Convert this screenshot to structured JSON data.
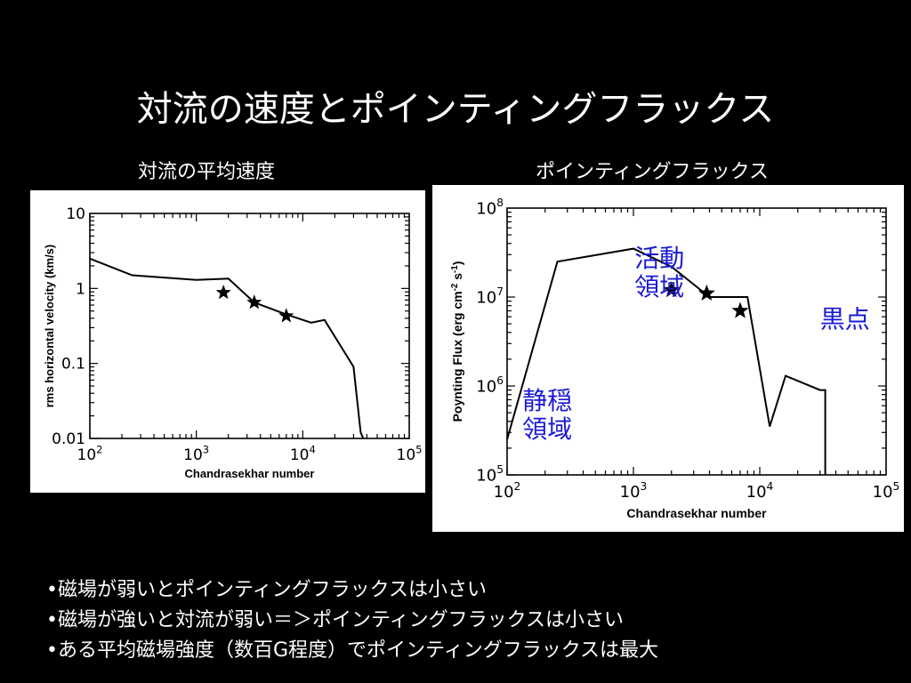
{
  "slide": {
    "title": "対流の速度とポインティングフラックス",
    "left_caption": "対流の平均速度",
    "right_caption": "ポインティングフラックス",
    "bullets": [
      "•磁場が弱いとポインティングフラックスは小さい",
      "•磁場が強いと対流が弱い＝＞ポインティングフラックスは小さい",
      "•ある平均磁場強度（数百G程度）でポインティングフラックスは最大"
    ]
  },
  "chart_data": [
    {
      "type": "line",
      "xlabel": "Chandrasekhar number",
      "ylabel": "rms horizontal velocity (km/s)",
      "x_scale": "log",
      "y_scale": "log",
      "xlim": [
        100,
        100000
      ],
      "ylim": [
        0.01,
        10
      ],
      "x_ticks": [
        {
          "value": 100,
          "base": "10",
          "exp": "2"
        },
        {
          "value": 1000,
          "base": "10",
          "exp": "3"
        },
        {
          "value": 10000,
          "base": "10",
          "exp": "4"
        },
        {
          "value": 100000,
          "base": "10",
          "exp": "5"
        }
      ],
      "y_ticks": [
        {
          "value": 10,
          "label": "10"
        },
        {
          "value": 1,
          "label": "1"
        },
        {
          "value": 0.1,
          "label": "0.1"
        },
        {
          "value": 0.01,
          "label": "0.01"
        }
      ],
      "series": [
        {
          "x": [
            100,
            250,
            1000,
            2000,
            3500,
            7000,
            12000,
            16000,
            30000,
            35000,
            37000
          ],
          "y": [
            2.5,
            1.5,
            1.3,
            1.35,
            0.65,
            0.45,
            0.35,
            0.38,
            0.09,
            0.012,
            0.01
          ]
        }
      ],
      "markers": {
        "shape": "star",
        "x": [
          1800,
          3500,
          7000
        ],
        "y": [
          0.88,
          0.65,
          0.43
        ]
      },
      "annotations": []
    },
    {
      "type": "line",
      "xlabel": "Chandrasekhar number",
      "ylabel_prefix": "Poynting Flux (erg cm",
      "ylabel_sup1": "-2",
      "ylabel_mid": " s",
      "ylabel_sup2": "-1",
      "ylabel_suffix": ")",
      "x_scale": "log",
      "y_scale": "log",
      "xlim": [
        100,
        100000
      ],
      "ylim": [
        100000,
        100000000
      ],
      "x_ticks": [
        {
          "value": 100,
          "base": "10",
          "exp": "2"
        },
        {
          "value": 1000,
          "base": "10",
          "exp": "3"
        },
        {
          "value": 10000,
          "base": "10",
          "exp": "4"
        },
        {
          "value": 100000,
          "base": "10",
          "exp": "5"
        }
      ],
      "y_ticks": [
        {
          "value": 100000000,
          "base": "10",
          "exp": "8"
        },
        {
          "value": 10000000,
          "base": "10",
          "exp": "7"
        },
        {
          "value": 1000000,
          "base": "10",
          "exp": "6"
        },
        {
          "value": 100000,
          "base": "10",
          "exp": "5"
        }
      ],
      "series": [
        {
          "x": [
            100,
            250,
            1000,
            2000,
            4000,
            8000,
            12000,
            16000,
            30000,
            33000,
            33000
          ],
          "y": [
            250000,
            25000000,
            35000000,
            22000000,
            10000000,
            10000000,
            350000,
            1300000,
            900000,
            900000,
            100000
          ]
        }
      ],
      "markers": {
        "shape": "star",
        "x": [
          2000,
          3800,
          7000
        ],
        "y": [
          12000000,
          11000000,
          7000000
        ]
      },
      "annotations": [
        {
          "lines": [
            "活動",
            "領域"
          ],
          "x": 1020,
          "y": 22000000
        },
        {
          "lines": [
            "黒点"
          ],
          "x": 30000,
          "y": 4500000
        },
        {
          "lines": [
            "静穏",
            "領域"
          ],
          "x": 132,
          "y": 550000
        }
      ],
      "annotation_color": "#1a1ad4"
    }
  ]
}
